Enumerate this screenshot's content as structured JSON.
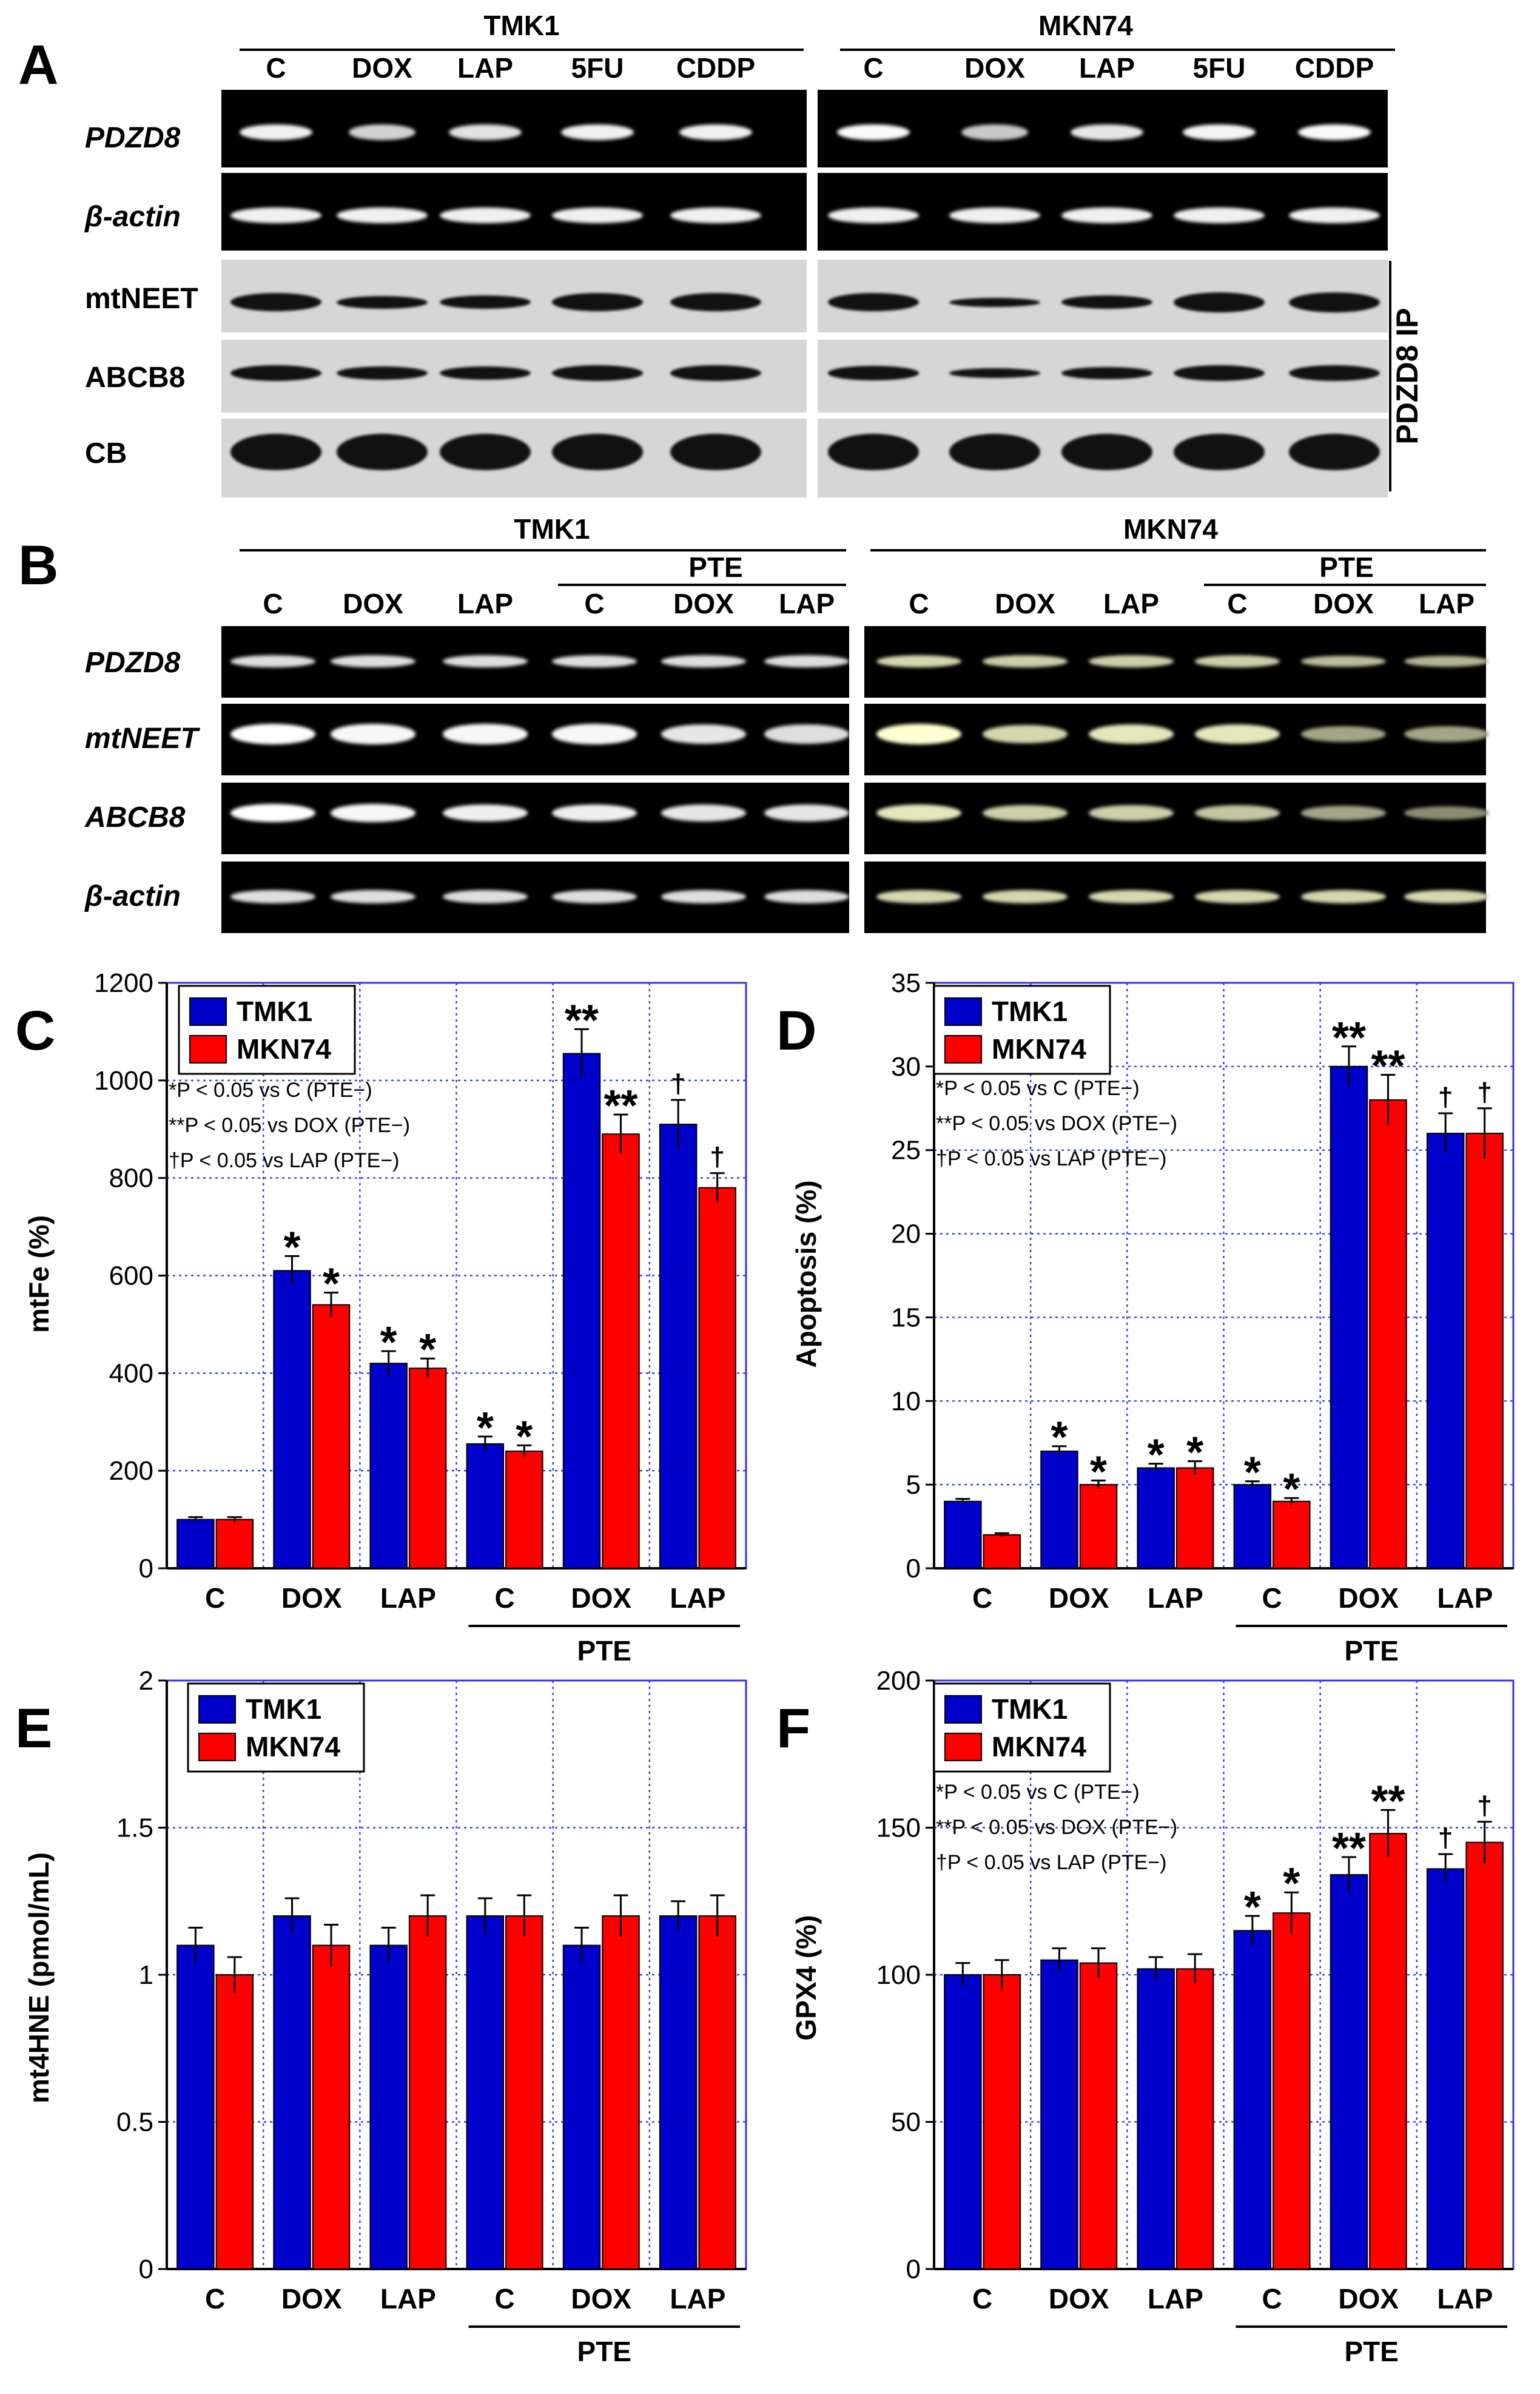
{
  "panel_A": {
    "letter": "A",
    "cell_lines": [
      "TMK1",
      "MKN74"
    ],
    "lanes": [
      "C",
      "DOX",
      "LAP",
      "5FU",
      "CDDP"
    ],
    "rows": [
      "PDZD8",
      "β-actin",
      "mtNEET",
      "ABCB8",
      "CB"
    ],
    "side_label": "PDZD8 IP"
  },
  "panel_B": {
    "letter": "B",
    "cell_lines": [
      "TMK1",
      "MKN74"
    ],
    "lanes": [
      "C",
      "DOX",
      "LAP",
      "C",
      "DOX",
      "LAP"
    ],
    "treatment_group": "PTE",
    "rows": [
      "PDZD8",
      "mtNEET",
      "ABCB8",
      "β-actin"
    ]
  },
  "chart_data": [
    {
      "panel": "C",
      "type": "bar",
      "categories": [
        "C",
        "DOX",
        "LAP",
        "C",
        "DOX",
        "LAP"
      ],
      "group_label": "PTE",
      "ylabel": "mtFe (%)",
      "ylim": [
        0,
        1200
      ],
      "yticks": [
        "0",
        "200",
        "400",
        "600",
        "800",
        "1000",
        "1200"
      ],
      "grid": true,
      "legend": "top-left",
      "series": [
        {
          "name": "TMK1",
          "color": "#0000cc",
          "values": [
            100,
            610,
            420,
            255,
            1055,
            910
          ],
          "errors": [
            5,
            30,
            25,
            15,
            50,
            50
          ],
          "marks": [
            "",
            "*",
            "*",
            "*",
            "**",
            "†"
          ]
        },
        {
          "name": "MKN74",
          "color": "#ff0000",
          "values": [
            100,
            540,
            410,
            240,
            890,
            780
          ],
          "errors": [
            5,
            25,
            20,
            12,
            40,
            30
          ],
          "marks": [
            "",
            "*",
            "*",
            "*",
            "**",
            "†"
          ]
        }
      ],
      "notes": [
        "*P < 0.05 vs C (PTE−)",
        "**P < 0.05 vs DOX (PTE−)",
        "†P < 0.05 vs LAP (PTE−)"
      ]
    },
    {
      "panel": "D",
      "type": "bar",
      "categories": [
        "C",
        "DOX",
        "LAP",
        "C",
        "DOX",
        "LAP"
      ],
      "group_label": "PTE",
      "ylabel": "Apoptosis (%)",
      "ylim": [
        0,
        35
      ],
      "yticks": [
        "0",
        "5",
        "10",
        "15",
        "20",
        "25",
        "30",
        "35"
      ],
      "grid": true,
      "legend": "top-left",
      "series": [
        {
          "name": "TMK1",
          "color": "#0000cc",
          "values": [
            4,
            7,
            6,
            5,
            30,
            26
          ],
          "errors": [
            0.15,
            0.3,
            0.25,
            0.2,
            1.2,
            1.2
          ],
          "marks": [
            "",
            "*",
            "*",
            "*",
            "**",
            "†"
          ]
        },
        {
          "name": "MKN74",
          "color": "#ff0000",
          "values": [
            2,
            5,
            6,
            4,
            28,
            26
          ],
          "errors": [
            0.1,
            0.25,
            0.4,
            0.2,
            1.5,
            1.5
          ],
          "marks": [
            "",
            "*",
            "*",
            "*",
            "**",
            "†"
          ]
        }
      ],
      "notes": [
        "*P < 0.05 vs C (PTE−)",
        "**P < 0.05 vs DOX (PTE−)",
        "†P < 0.05 vs LAP (PTE−)"
      ]
    },
    {
      "panel": "E",
      "type": "bar",
      "categories": [
        "C",
        "DOX",
        "LAP",
        "C",
        "DOX",
        "LAP"
      ],
      "group_label": "PTE",
      "ylabel": "mt4HNE (pmol/mL)",
      "ylim": [
        0,
        2
      ],
      "yticks": [
        "0",
        "0.5",
        "1",
        "1.5",
        "2"
      ],
      "grid": true,
      "legend": "top-left",
      "series": [
        {
          "name": "TMK1",
          "color": "#0000cc",
          "values": [
            1.1,
            1.2,
            1.1,
            1.2,
            1.1,
            1.2
          ],
          "errors": [
            0.06,
            0.06,
            0.06,
            0.06,
            0.06,
            0.05
          ],
          "marks": [
            "",
            "",
            "",
            "",
            "",
            ""
          ]
        },
        {
          "name": "MKN74",
          "color": "#ff0000",
          "values": [
            1.0,
            1.1,
            1.2,
            1.2,
            1.2,
            1.2
          ],
          "errors": [
            0.06,
            0.07,
            0.07,
            0.07,
            0.07,
            0.07
          ],
          "marks": [
            "",
            "",
            "",
            "",
            "",
            ""
          ]
        }
      ],
      "notes": []
    },
    {
      "panel": "F",
      "type": "bar",
      "categories": [
        "C",
        "DOX",
        "LAP",
        "C",
        "DOX",
        "LAP"
      ],
      "group_label": "PTE",
      "ylabel": "GPX4 (%)",
      "ylim": [
        0,
        200
      ],
      "yticks": [
        "0",
        "50",
        "100",
        "150",
        "200"
      ],
      "grid": true,
      "legend": "top-left",
      "series": [
        {
          "name": "TMK1",
          "color": "#0000cc",
          "values": [
            100,
            105,
            102,
            115,
            134,
            136
          ],
          "errors": [
            4,
            4,
            4,
            5,
            6,
            5
          ],
          "marks": [
            "",
            "",
            "",
            "*",
            "**",
            "†"
          ]
        },
        {
          "name": "MKN74",
          "color": "#ff0000",
          "values": [
            100,
            104,
            102,
            121,
            148,
            145
          ],
          "errors": [
            5,
            5,
            5,
            7,
            8,
            7
          ],
          "marks": [
            "",
            "",
            "",
            "*",
            "**",
            "†"
          ]
        }
      ],
      "notes": [
        "*P < 0.05 vs C (PTE−)",
        "**P < 0.05 vs DOX (PTE−)",
        "†P < 0.05 vs LAP (PTE−)"
      ]
    }
  ]
}
